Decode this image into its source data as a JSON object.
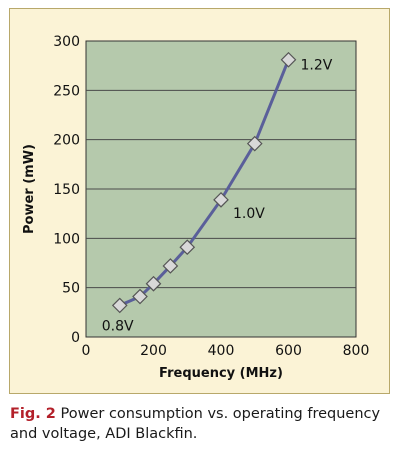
{
  "chart_data": {
    "type": "line",
    "xlabel": "Frequency (MHz)",
    "ylabel": "Power (mW)",
    "xlim": [
      0,
      800
    ],
    "ylim": [
      0,
      300
    ],
    "xticks": [
      0,
      200,
      400,
      600,
      800
    ],
    "yticks": [
      0,
      50,
      100,
      150,
      200,
      250,
      300
    ],
    "grid": "horizontal",
    "series": [
      {
        "x": [
          100,
          160,
          200,
          250,
          300,
          400,
          500,
          600
        ],
        "y": [
          32,
          41,
          54,
          72,
          91,
          139,
          196,
          281
        ],
        "marker": "diamond",
        "color": "#5a5f9a"
      }
    ],
    "annotations": [
      {
        "text": "0.8V",
        "x": 100,
        "y": 32
      },
      {
        "text": "1.0V",
        "x": 400,
        "y": 139
      },
      {
        "text": "1.2V",
        "x": 600,
        "y": 281
      }
    ],
    "colors": {
      "plot_background": "#b5c9ac",
      "gridline": "#4a4a4a",
      "line": "#5a5f9a",
      "marker_fill": "#d8d8d8",
      "marker_stroke": "#555555"
    }
  },
  "caption": {
    "fig_label": "Fig. 2",
    "text": " Power consumption vs. operating frequency and voltage, ADI Blackfin."
  }
}
